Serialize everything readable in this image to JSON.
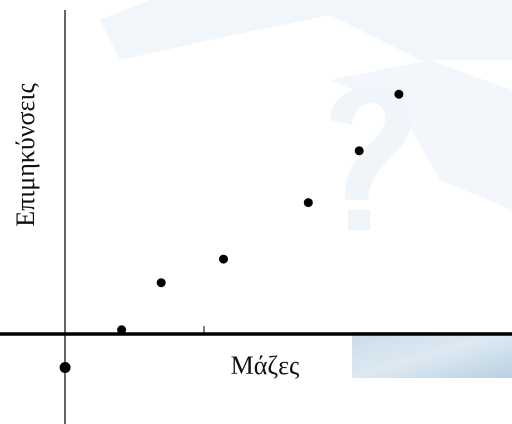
{
  "chart_data": {
    "type": "scatter",
    "xlabel": "Μάζες",
    "ylabel": "Επιμηκύνσεις",
    "points": [
      {
        "x": 0,
        "y": 0
      },
      {
        "x": 1,
        "y": 0.8
      },
      {
        "x": 1.7,
        "y": 1.8
      },
      {
        "x": 2.8,
        "y": 2.3
      },
      {
        "x": 4.3,
        "y": 3.5
      },
      {
        "x": 5.2,
        "y": 4.6
      },
      {
        "x": 5.9,
        "y": 5.8
      }
    ],
    "xlim": [
      -1.15,
      7.9
    ],
    "ylim": [
      -1.2,
      7.8
    ],
    "grid": false,
    "colors": {
      "points": "#000000",
      "axes": "#000000"
    }
  }
}
